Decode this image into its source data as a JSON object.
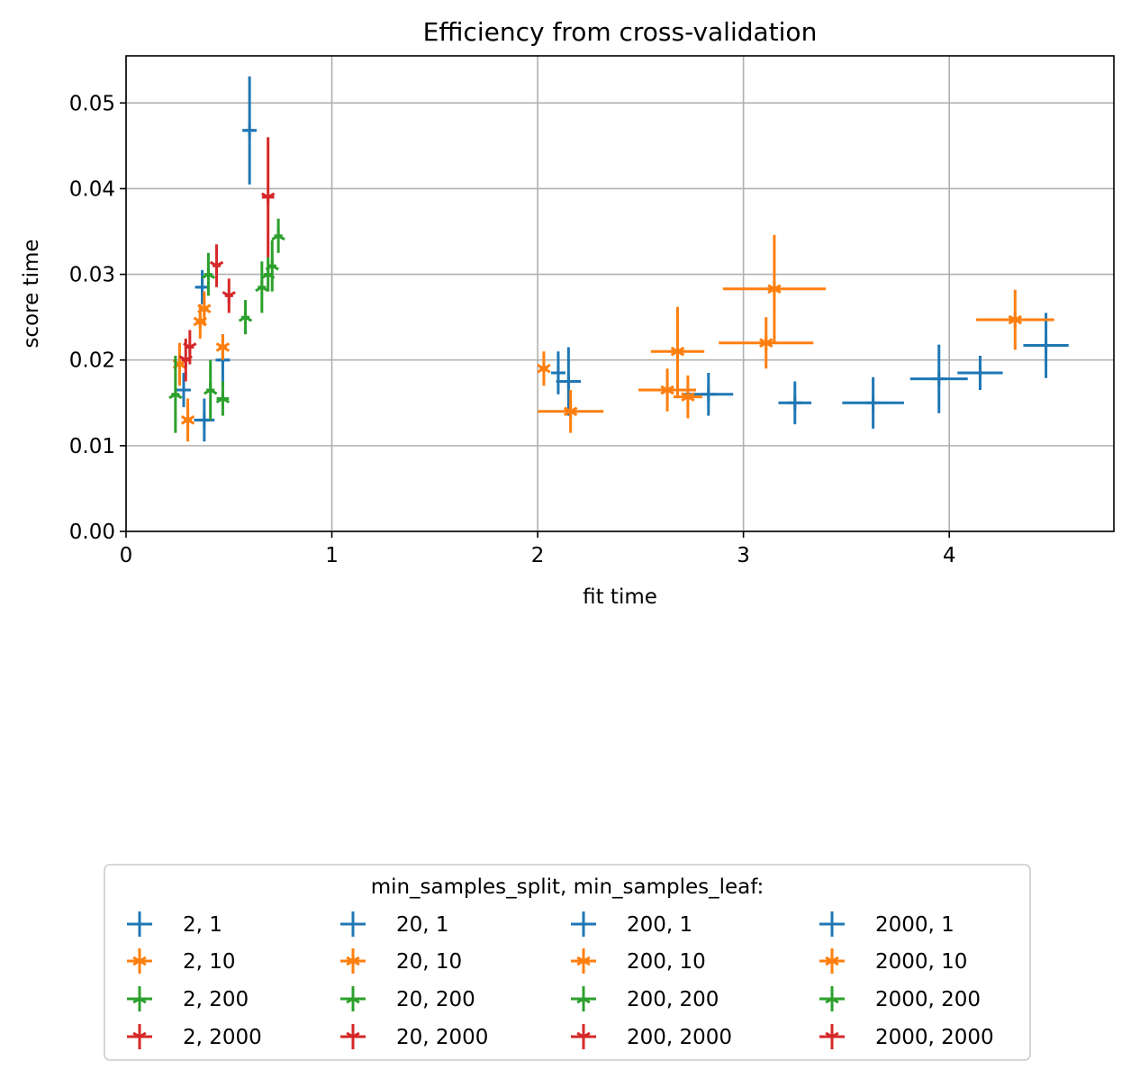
{
  "chart_data": {
    "type": "scatter",
    "title": "Efficiency from cross-validation",
    "xlabel": "fit time",
    "ylabel": "score time",
    "xlim": [
      0,
      4.8
    ],
    "ylim": [
      0,
      0.0555
    ],
    "xticks": [
      0,
      1,
      2,
      3,
      4
    ],
    "xtick_labels": [
      "0",
      "1",
      "2",
      "3",
      "4"
    ],
    "yticks": [
      0,
      0.01,
      0.02,
      0.03,
      0.04,
      0.05
    ],
    "ytick_labels": [
      "0.00",
      "0.01",
      "0.02",
      "0.03",
      "0.04",
      "0.05"
    ],
    "grid": true,
    "legend": {
      "title": "min_samples_split, min_samples_leaf:",
      "placement": "below",
      "columns": 4
    },
    "series": [
      {
        "name": "2, 1",
        "color": "#1f77b4",
        "marker": "plus",
        "points": [
          {
            "x": 0.28,
            "y": 0.0165,
            "xerr": 0.03,
            "yerr": 0.002
          }
        ]
      },
      {
        "name": "2, 10",
        "color": "#ff7f0e",
        "marker": "star",
        "points": [
          {
            "x": 0.26,
            "y": 0.0195,
            "xerr": 0.02,
            "yerr": 0.0025
          }
        ]
      },
      {
        "name": "2, 200",
        "color": "#2ca02c",
        "marker": "tri",
        "points": [
          {
            "x": 0.24,
            "y": 0.016,
            "xerr": 0.02,
            "yerr": 0.0045
          }
        ]
      },
      {
        "name": "2, 2000",
        "color": "#d62728",
        "marker": "tri_down",
        "points": [
          {
            "x": 0.29,
            "y": 0.02,
            "xerr": 0.02,
            "yerr": 0.0025
          }
        ]
      },
      {
        "name": "20, 1",
        "color": "#1f77b4",
        "marker": "plus",
        "points": [
          {
            "x": 0.37,
            "y": 0.0285,
            "xerr": 0.03,
            "yerr": 0.002
          },
          {
            "x": 0.38,
            "y": 0.013,
            "xerr": 0.05,
            "yerr": 0.0025
          }
        ]
      },
      {
        "name": "20, 10",
        "color": "#ff7f0e",
        "marker": "star",
        "points": [
          {
            "x": 0.3,
            "y": 0.013,
            "xerr": 0.02,
            "yerr": 0.0025
          },
          {
            "x": 0.36,
            "y": 0.0245,
            "xerr": 0.02,
            "yerr": 0.002
          }
        ]
      },
      {
        "name": "20, 200",
        "color": "#2ca02c",
        "marker": "tri",
        "points": [
          {
            "x": 0.4,
            "y": 0.03,
            "xerr": 0.02,
            "yerr": 0.0025
          },
          {
            "x": 0.41,
            "y": 0.0165,
            "xerr": 0.02,
            "yerr": 0.0035
          }
        ]
      },
      {
        "name": "20, 2000",
        "color": "#d62728",
        "marker": "tri_down",
        "points": [
          {
            "x": 0.31,
            "y": 0.0215,
            "xerr": 0.02,
            "yerr": 0.002
          }
        ]
      },
      {
        "name": "200, 1",
        "color": "#1f77b4",
        "marker": "plus",
        "points": [
          {
            "x": 0.47,
            "y": 0.02,
            "xerr": 0.03,
            "yerr": 0.003
          },
          {
            "x": 0.6,
            "y": 0.0468,
            "xerr": 0.03,
            "yerr": 0.0063
          }
        ]
      },
      {
        "name": "200, 10",
        "color": "#ff7f0e",
        "marker": "star",
        "points": [
          {
            "x": 0.38,
            "y": 0.026,
            "xerr": 0.02,
            "yerr": 0.002
          },
          {
            "x": 0.47,
            "y": 0.0215,
            "xerr": 0.02,
            "yerr": 0.0015
          }
        ]
      },
      {
        "name": "200, 200",
        "color": "#2ca02c",
        "marker": "tri",
        "points": [
          {
            "x": 0.47,
            "y": 0.0155,
            "xerr": 0.03,
            "yerr": 0.002
          },
          {
            "x": 0.58,
            "y": 0.025,
            "xerr": 0.02,
            "yerr": 0.002
          },
          {
            "x": 0.69,
            "y": 0.03,
            "xerr": 0.02,
            "yerr": 0.002
          }
        ]
      },
      {
        "name": "200, 2000",
        "color": "#d62728",
        "marker": "tri_down",
        "points": [
          {
            "x": 0.44,
            "y": 0.031,
            "xerr": 0.02,
            "yerr": 0.0025
          },
          {
            "x": 0.5,
            "y": 0.0275,
            "xerr": 0.02,
            "yerr": 0.002
          }
        ]
      },
      {
        "name": "2000, 1",
        "color": "#1f77b4",
        "marker": "plus",
        "points": [
          {
            "x": 2.1,
            "y": 0.0185,
            "xerr": 0.03,
            "yerr": 0.0025
          },
          {
            "x": 2.15,
            "y": 0.0175,
            "xerr": 0.06,
            "yerr": 0.004
          },
          {
            "x": 2.83,
            "y": 0.016,
            "xerr": 0.12,
            "yerr": 0.0025
          },
          {
            "x": 3.25,
            "y": 0.015,
            "xerr": 0.08,
            "yerr": 0.0025
          },
          {
            "x": 3.63,
            "y": 0.015,
            "xerr": 0.15,
            "yerr": 0.003
          },
          {
            "x": 3.95,
            "y": 0.0178,
            "xerr": 0.14,
            "yerr": 0.004
          },
          {
            "x": 4.15,
            "y": 0.0185,
            "xerr": 0.11,
            "yerr": 0.002
          },
          {
            "x": 4.47,
            "y": 0.0217,
            "xerr": 0.11,
            "yerr": 0.0038
          }
        ]
      },
      {
        "name": "2000, 10",
        "color": "#ff7f0e",
        "marker": "star",
        "points": [
          {
            "x": 2.03,
            "y": 0.019,
            "xerr": 0.02,
            "yerr": 0.002
          },
          {
            "x": 2.16,
            "y": 0.014,
            "xerr": 0.16,
            "yerr": 0.0025
          },
          {
            "x": 2.63,
            "y": 0.0165,
            "xerr": 0.14,
            "yerr": 0.0025
          },
          {
            "x": 2.68,
            "y": 0.021,
            "xerr": 0.13,
            "yerr": 0.0052
          },
          {
            "x": 2.73,
            "y": 0.0157,
            "xerr": 0.07,
            "yerr": 0.0025
          },
          {
            "x": 3.11,
            "y": 0.022,
            "xerr": 0.23,
            "yerr": 0.003
          },
          {
            "x": 3.15,
            "y": 0.0283,
            "xerr": 0.25,
            "yerr": 0.0063
          },
          {
            "x": 4.32,
            "y": 0.0247,
            "xerr": 0.19,
            "yerr": 0.0035
          }
        ]
      },
      {
        "name": "2000, 200",
        "color": "#2ca02c",
        "marker": "tri",
        "points": [
          {
            "x": 0.66,
            "y": 0.0285,
            "xerr": 0.02,
            "yerr": 0.003
          },
          {
            "x": 0.71,
            "y": 0.031,
            "xerr": 0.02,
            "yerr": 0.003
          },
          {
            "x": 0.74,
            "y": 0.0345,
            "xerr": 0.02,
            "yerr": 0.002
          }
        ]
      },
      {
        "name": "2000, 2000",
        "color": "#d62728",
        "marker": "tri_down",
        "points": [
          {
            "x": 0.69,
            "y": 0.039,
            "xerr": 0.03,
            "yerr": 0.007
          }
        ]
      }
    ]
  }
}
